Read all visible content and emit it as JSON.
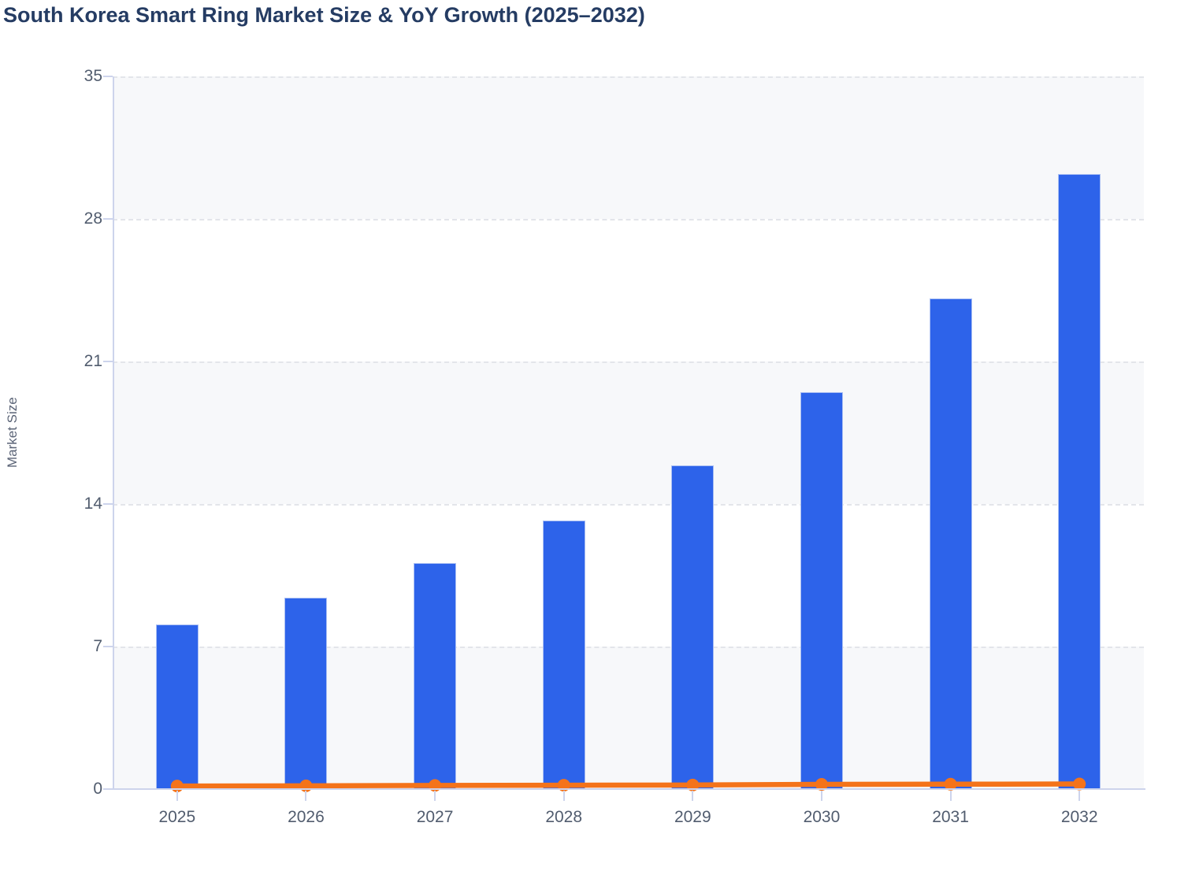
{
  "title": "South Korea Smart Ring Market Size & YoY Growth (2025–2032)",
  "y_axis": {
    "label": "Market Size",
    "ticks": [
      0,
      7,
      14,
      21,
      28,
      35
    ]
  },
  "x_axis": {
    "ticks": [
      "2025",
      "2026",
      "2027",
      "2028",
      "2029",
      "2030",
      "2031",
      "2032"
    ]
  },
  "chart_data": {
    "type": "bar",
    "title": "South Korea Smart Ring Market Size & YoY Growth (2025–2032)",
    "categories": [
      "2025",
      "2026",
      "2027",
      "2028",
      "2029",
      "2030",
      "2031",
      "2032"
    ],
    "series": [
      {
        "name": "Market Size",
        "type": "bar",
        "values": [
          8.1,
          9.4,
          11.1,
          13.2,
          15.9,
          19.5,
          24.1,
          30.2
        ]
      },
      {
        "name": "YoY Growth",
        "type": "line",
        "values": [
          0.15,
          0.16,
          0.18,
          0.19,
          0.2,
          0.23,
          0.24,
          0.25
        ]
      }
    ],
    "xlabel": "",
    "ylabel": "Market Size",
    "ylim": [
      0,
      35
    ],
    "ytick_step": 7,
    "grid": "horizontal-dashed",
    "band_fill_ranges": [
      [
        28,
        35
      ],
      [
        14,
        21
      ],
      [
        0,
        7
      ]
    ],
    "legend_position": "none"
  },
  "colors": {
    "bar_fill": "#2d63ea",
    "bar_border": "#aabff3",
    "line_stroke": "#f4731a",
    "marker_fill": "#f4731a",
    "title_text": "#253c63",
    "tick_text": "#515c6e",
    "axis_title_text": "#5a6376",
    "axis_line": "#cdd4ec",
    "gridline": "#e3e5ea",
    "band_fill": "#f7f8fa",
    "background": "#ffffff"
  }
}
